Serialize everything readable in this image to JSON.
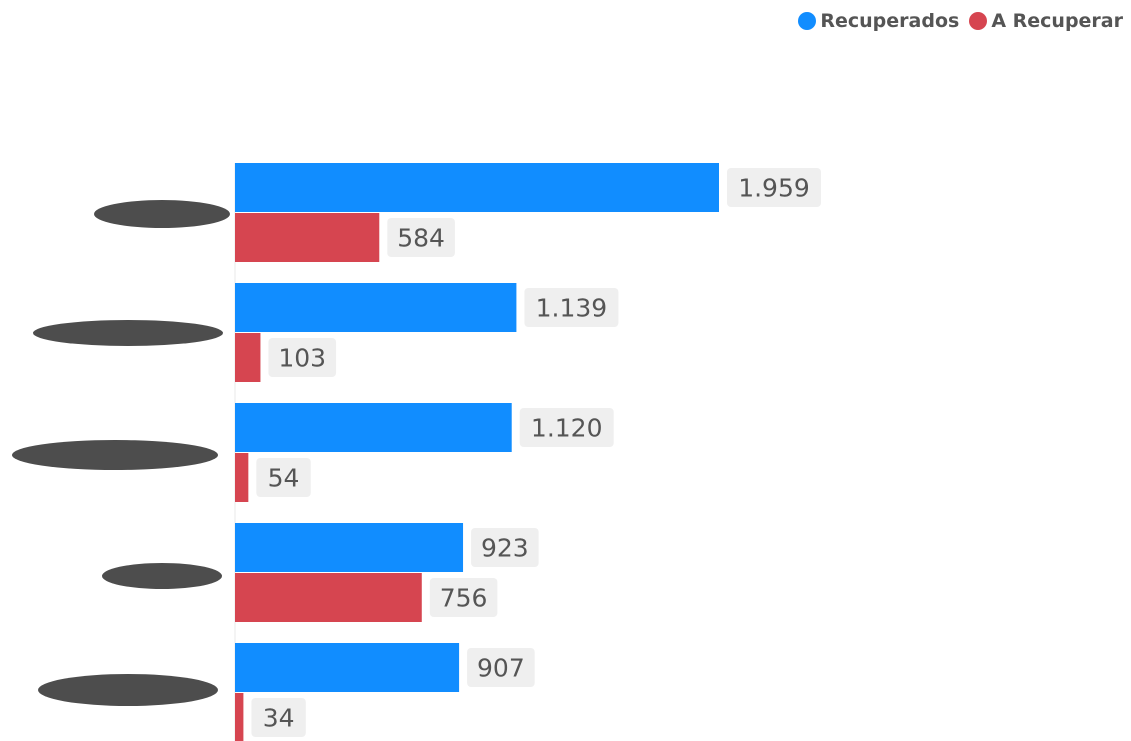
{
  "colors": {
    "recuperados": "#118dff",
    "a_recuperar": "#d64550",
    "label_bg": "#efefef",
    "label_text": "#555555",
    "redaction": "#4d4d4d"
  },
  "legend": {
    "items": [
      {
        "label": "Recuperados",
        "color": "#118dff"
      },
      {
        "label": "A Recuperar",
        "color": "#d64550"
      }
    ],
    "placement": "top-right"
  },
  "chart_data": {
    "type": "bar",
    "orientation": "horizontal",
    "categories": [
      "",
      "",
      "",
      "",
      ""
    ],
    "category_labels_redacted": true,
    "series": [
      {
        "name": "Recuperados",
        "values": [
          1959,
          1139,
          1120,
          923,
          907
        ],
        "labels": [
          "1.959",
          "1.139",
          "1.120",
          "923",
          "907"
        ]
      },
      {
        "name": "A Recuperar",
        "values": [
          584,
          103,
          54,
          756,
          34
        ],
        "labels": [
          "584",
          "103",
          "54",
          "756",
          "34"
        ]
      }
    ],
    "xlim": [
      0,
      3000
    ],
    "grid": false,
    "legend": "top-right"
  }
}
